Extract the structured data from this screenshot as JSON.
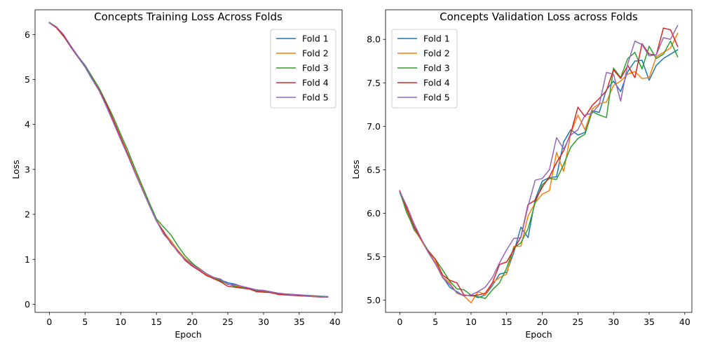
{
  "chart_data": [
    {
      "type": "line",
      "title": "Concepts Training Loss Across Folds",
      "xlabel": "Epoch",
      "ylabel": "Loss",
      "xlim": [
        -2,
        41
      ],
      "ylim": [
        -0.18,
        6.55
      ],
      "xticks": [
        0,
        5,
        10,
        15,
        20,
        25,
        30,
        35,
        40
      ],
      "yticks": [
        0,
        1,
        2,
        3,
        4,
        5,
        6
      ],
      "grid": false,
      "legend": "top-right",
      "x": [
        0,
        1,
        2,
        3,
        4,
        5,
        6,
        7,
        8,
        9,
        10,
        11,
        12,
        13,
        14,
        15,
        16,
        17,
        18,
        19,
        20,
        21,
        22,
        23,
        24,
        25,
        26,
        27,
        28,
        29,
        30,
        31,
        32,
        33,
        34,
        35,
        36,
        37,
        38,
        39
      ],
      "series": [
        {
          "name": "Fold 1",
          "color": "#1f77b4",
          "values": [
            6.26,
            6.16,
            5.97,
            5.72,
            5.5,
            5.28,
            5.0,
            4.75,
            4.4,
            4.05,
            3.68,
            3.32,
            2.94,
            2.58,
            2.22,
            1.86,
            1.58,
            1.4,
            1.2,
            1.02,
            0.9,
            0.8,
            0.68,
            0.6,
            0.54,
            0.48,
            0.45,
            0.39,
            0.36,
            0.32,
            0.3,
            0.28,
            0.24,
            0.23,
            0.22,
            0.21,
            0.2,
            0.19,
            0.18,
            0.17
          ]
        },
        {
          "name": "Fold 2",
          "color": "#ff7f0e",
          "values": [
            6.26,
            6.15,
            5.96,
            5.74,
            5.52,
            5.3,
            5.03,
            4.77,
            4.45,
            4.08,
            3.72,
            3.35,
            2.96,
            2.6,
            2.24,
            1.88,
            1.6,
            1.42,
            1.2,
            1.02,
            0.9,
            0.8,
            0.66,
            0.58,
            0.52,
            0.45,
            0.42,
            0.38,
            0.36,
            0.3,
            0.29,
            0.27,
            0.24,
            0.22,
            0.21,
            0.2,
            0.19,
            0.18,
            0.17,
            0.16
          ]
        },
        {
          "name": "Fold 3",
          "color": "#2ca02c",
          "values": [
            6.27,
            6.17,
            5.98,
            5.75,
            5.52,
            5.32,
            5.06,
            4.8,
            4.48,
            4.15,
            3.78,
            3.42,
            3.02,
            2.64,
            2.26,
            1.9,
            1.72,
            1.55,
            1.3,
            1.08,
            0.92,
            0.78,
            0.68,
            0.6,
            0.52,
            0.45,
            0.4,
            0.37,
            0.35,
            0.3,
            0.3,
            0.27,
            0.24,
            0.22,
            0.21,
            0.2,
            0.19,
            0.17,
            0.17,
            0.16
          ]
        },
        {
          "name": "Fold 4",
          "color": "#d62728",
          "values": [
            6.26,
            6.15,
            5.96,
            5.73,
            5.51,
            5.3,
            5.02,
            4.76,
            4.45,
            4.08,
            3.7,
            3.33,
            2.93,
            2.56,
            2.2,
            1.85,
            1.62,
            1.36,
            1.18,
            0.98,
            0.85,
            0.75,
            0.64,
            0.57,
            0.5,
            0.4,
            0.38,
            0.36,
            0.34,
            0.28,
            0.27,
            0.26,
            0.22,
            0.21,
            0.2,
            0.19,
            0.18,
            0.17,
            0.16,
            0.16
          ]
        },
        {
          "name": "Fold 5",
          "color": "#9467bd",
          "values": [
            6.26,
            6.17,
            6.0,
            5.75,
            5.52,
            5.3,
            5.01,
            4.74,
            4.4,
            4.03,
            3.66,
            3.3,
            2.92,
            2.56,
            2.2,
            1.86,
            1.56,
            1.38,
            1.16,
            1.0,
            0.88,
            0.78,
            0.68,
            0.6,
            0.56,
            0.44,
            0.44,
            0.4,
            0.36,
            0.32,
            0.31,
            0.28,
            0.25,
            0.23,
            0.22,
            0.21,
            0.19,
            0.17,
            0.17,
            0.16
          ]
        }
      ]
    },
    {
      "type": "line",
      "title": "Concepts Validation Loss across Folds",
      "xlabel": "Epoch",
      "ylabel": "Loss",
      "xlim": [
        -2,
        41
      ],
      "ylim": [
        4.86,
        8.34
      ],
      "xticks": [
        0,
        5,
        10,
        15,
        20,
        25,
        30,
        35,
        40
      ],
      "yticks": [
        5.0,
        5.5,
        6.0,
        6.5,
        7.0,
        7.5,
        8.0
      ],
      "ytick_labels": [
        "5.0",
        "5.5",
        "6.0",
        "6.5",
        "7.0",
        "7.5",
        "8.0"
      ],
      "grid": false,
      "legend": "top-left",
      "x": [
        0,
        1,
        2,
        3,
        4,
        5,
        6,
        7,
        8,
        9,
        10,
        11,
        12,
        13,
        14,
        15,
        16,
        17,
        18,
        19,
        20,
        21,
        22,
        23,
        24,
        25,
        26,
        27,
        28,
        29,
        30,
        31,
        32,
        33,
        34,
        35,
        36,
        37,
        38,
        39
      ],
      "series": [
        {
          "name": "Fold 1",
          "color": "#1f77b4",
          "values": [
            6.24,
            6.02,
            5.81,
            5.7,
            5.55,
            5.42,
            5.27,
            5.15,
            5.1,
            5.05,
            5.06,
            5.03,
            5.06,
            5.17,
            5.3,
            5.32,
            5.55,
            5.84,
            5.72,
            6.16,
            6.37,
            6.41,
            6.42,
            6.82,
            6.96,
            6.9,
            6.93,
            7.18,
            7.16,
            7.42,
            7.52,
            7.4,
            7.63,
            7.75,
            7.76,
            7.53,
            7.7,
            7.78,
            7.83,
            7.88
          ]
        },
        {
          "name": "Fold 2",
          "color": "#ff7f0e",
          "values": [
            6.25,
            6.02,
            5.82,
            5.69,
            5.55,
            5.44,
            5.27,
            5.2,
            5.08,
            5.05,
            4.97,
            5.1,
            5.06,
            5.2,
            5.26,
            5.3,
            5.62,
            5.62,
            5.97,
            6.12,
            6.22,
            6.26,
            6.7,
            6.48,
            6.92,
            7.13,
            6.96,
            7.2,
            7.26,
            7.28,
            7.47,
            7.52,
            7.6,
            7.63,
            7.55,
            7.56,
            7.8,
            7.85,
            7.9,
            8.07
          ]
        },
        {
          "name": "Fold 3",
          "color": "#2ca02c",
          "values": [
            6.25,
            6.0,
            5.83,
            5.7,
            5.57,
            5.47,
            5.35,
            5.22,
            5.13,
            5.12,
            5.06,
            5.04,
            5.02,
            5.12,
            5.2,
            5.37,
            5.6,
            5.66,
            5.82,
            6.12,
            6.33,
            6.4,
            6.39,
            6.56,
            6.76,
            6.86,
            6.91,
            7.17,
            7.13,
            7.1,
            7.67,
            7.56,
            7.78,
            7.85,
            7.66,
            7.92,
            7.78,
            7.83,
            7.98,
            7.8
          ]
        },
        {
          "name": "Fold 4",
          "color": "#d62728",
          "values": [
            6.26,
            6.05,
            5.85,
            5.7,
            5.56,
            5.47,
            5.29,
            5.23,
            5.2,
            5.06,
            5.05,
            5.06,
            5.08,
            5.2,
            5.41,
            5.44,
            5.58,
            5.73,
            6.1,
            6.15,
            6.3,
            6.42,
            6.58,
            6.72,
            6.92,
            7.22,
            7.11,
            7.24,
            7.32,
            7.41,
            7.65,
            7.55,
            7.7,
            7.56,
            7.95,
            7.83,
            7.82,
            8.13,
            8.11,
            7.92
          ]
        },
        {
          "name": "Fold 5",
          "color": "#9467bd",
          "values": [
            6.25,
            6.08,
            5.88,
            5.71,
            5.55,
            5.42,
            5.26,
            5.18,
            5.09,
            5.05,
            5.06,
            5.1,
            5.15,
            5.26,
            5.43,
            5.58,
            5.71,
            5.72,
            6.08,
            6.38,
            6.4,
            6.5,
            6.87,
            6.74,
            6.9,
            6.96,
            7.13,
            7.15,
            7.25,
            7.62,
            7.6,
            7.29,
            7.72,
            7.98,
            7.94,
            7.81,
            7.82,
            8.02,
            8.0,
            8.16
          ]
        }
      ]
    }
  ]
}
